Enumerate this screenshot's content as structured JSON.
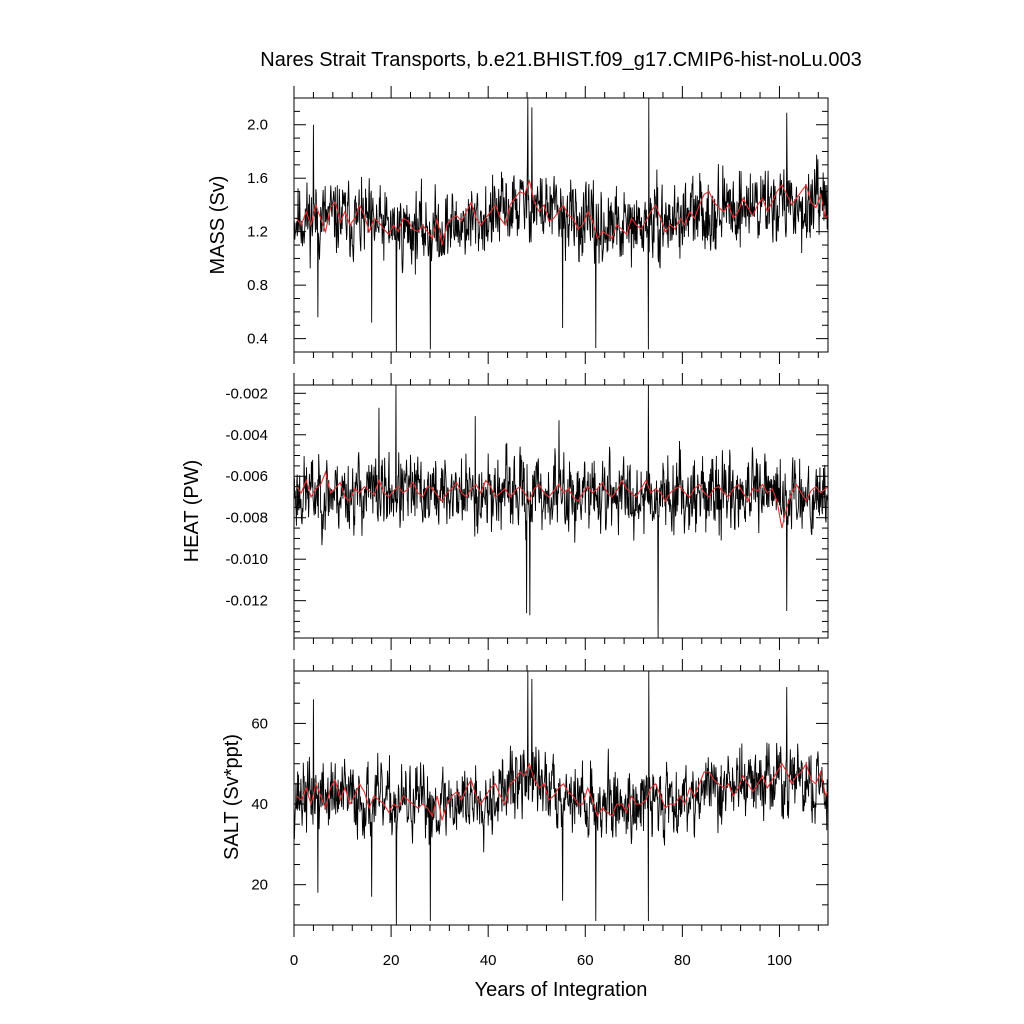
{
  "figure": {
    "title": "Nares Strait Transports, b.e21.BHIST.f09_g17.CMIP6-hist-noLu.003",
    "xlabel": "Years of Integration"
  },
  "colors": {
    "raw_line": "#000000",
    "smooth_line": "#e03030"
  },
  "chart_data": [
    {
      "type": "line",
      "ylabel": "MASS (Sv)",
      "xlim": [
        0,
        110
      ],
      "ylim": [
        0.3,
        2.2
      ],
      "yticks": [
        0.4,
        0.8,
        1.2,
        1.6,
        2.0
      ],
      "ytick_labels": [
        "0.4",
        "0.8",
        "1.2",
        "1.6",
        "2.0"
      ],
      "yminor_step": 0.1,
      "series": [
        {
          "kind": "monthly",
          "samples_per_year": 12,
          "mean_keys": [
            [
              0,
              1.3
            ],
            [
              10,
              1.3
            ],
            [
              20,
              1.22
            ],
            [
              30,
              1.22
            ],
            [
              40,
              1.3
            ],
            [
              48,
              1.42
            ],
            [
              55,
              1.33
            ],
            [
              62,
              1.22
            ],
            [
              70,
              1.22
            ],
            [
              80,
              1.3
            ],
            [
              90,
              1.38
            ],
            [
              100,
              1.42
            ],
            [
              110,
              1.35
            ]
          ],
          "spread": 0.17,
          "noise_seed": 11,
          "spikes": [
            [
              21.1,
              0.3
            ],
            [
              28.1,
              0.32
            ],
            [
              48.2,
              2.2
            ],
            [
              49.0,
              2.13
            ],
            [
              73.1,
              2.2
            ],
            [
              73.0,
              0.32
            ],
            [
              55.3,
              0.48
            ],
            [
              62.2,
              0.33
            ],
            [
              16.0,
              0.52
            ],
            [
              4.9,
              0.56
            ],
            [
              4.0,
              2.0
            ],
            [
              101.5,
              2.09
            ]
          ]
        },
        {
          "kind": "annual",
          "values": [
            1.3,
            1.25,
            1.35,
            1.25,
            1.4,
            1.3,
            1.2,
            1.38,
            1.42,
            1.27,
            1.35,
            1.25,
            1.3,
            1.4,
            1.32,
            1.2,
            1.3,
            1.27,
            1.22,
            1.18,
            1.25,
            1.2,
            1.3,
            1.28,
            1.22,
            1.2,
            1.25,
            1.2,
            1.15,
            1.3,
            1.1,
            1.25,
            1.3,
            1.32,
            1.28,
            1.35,
            1.42,
            1.3,
            1.25,
            1.3,
            1.35,
            1.4,
            1.3,
            1.25,
            1.4,
            1.45,
            1.5,
            1.48,
            1.58,
            1.42,
            1.35,
            1.4,
            1.28,
            1.3,
            1.35,
            1.4,
            1.32,
            1.3,
            1.22,
            1.25,
            1.35,
            1.28,
            1.15,
            1.2,
            1.18,
            1.15,
            1.25,
            1.22,
            1.18,
            1.3,
            1.25,
            1.22,
            1.28,
            1.35,
            1.4,
            1.3,
            1.2,
            1.25,
            1.22,
            1.3,
            1.25,
            1.35,
            1.3,
            1.4,
            1.48,
            1.5,
            1.42,
            1.38,
            1.35,
            1.4,
            1.3,
            1.35,
            1.45,
            1.38,
            1.32,
            1.4,
            1.45,
            1.35,
            1.42,
            1.5,
            1.55,
            1.48,
            1.4,
            1.45,
            1.5,
            1.55,
            1.42,
            1.38,
            1.48,
            1.3,
            1.35
          ]
        }
      ]
    },
    {
      "type": "line",
      "ylabel": "HEAT (PW)",
      "xlim": [
        0,
        110
      ],
      "ylim": [
        -0.0138,
        -0.0016
      ],
      "yticks": [
        -0.012,
        -0.01,
        -0.008,
        -0.006,
        -0.004,
        -0.002
      ],
      "ytick_labels": [
        "-0.012",
        "-0.010",
        "-0.008",
        "-0.006",
        "-0.004",
        "-0.002"
      ],
      "yminor_step": 0.0005,
      "series": [
        {
          "kind": "monthly",
          "samples_per_year": 12,
          "mean_keys": [
            [
              0,
              -0.0068
            ],
            [
              20,
              -0.0068
            ],
            [
              40,
              -0.0068
            ],
            [
              60,
              -0.0069
            ],
            [
              80,
              -0.0068
            ],
            [
              100,
              -0.0069
            ],
            [
              110,
              -0.0068
            ]
          ],
          "spread": 0.0011,
          "noise_seed": 23,
          "spikes": [
            [
              21.0,
              -0.0016
            ],
            [
              47.9,
              -0.0126
            ],
            [
              48.6,
              -0.0127
            ],
            [
              73.0,
              -0.0016
            ],
            [
              75.0,
              -0.0138
            ],
            [
              101.5,
              -0.0125
            ],
            [
              37.3,
              -0.0031
            ],
            [
              54.6,
              -0.0033
            ],
            [
              17.5,
              -0.0027
            ]
          ]
        },
        {
          "kind": "annual",
          "values": [
            -0.0065,
            -0.0068,
            -0.0062,
            -0.007,
            -0.0066,
            -0.0064,
            -0.0058,
            -0.0068,
            -0.0066,
            -0.0063,
            -0.007,
            -0.0072,
            -0.0066,
            -0.0068,
            -0.0065,
            -0.0067,
            -0.0069,
            -0.0062,
            -0.0068,
            -0.007,
            -0.0067,
            -0.0065,
            -0.0068,
            -0.0066,
            -0.0063,
            -0.0068,
            -0.007,
            -0.0065,
            -0.0066,
            -0.0069,
            -0.0072,
            -0.0068,
            -0.0066,
            -0.0063,
            -0.0068,
            -0.007,
            -0.0066,
            -0.0064,
            -0.0068,
            -0.0062,
            -0.0065,
            -0.007,
            -0.0068,
            -0.0066,
            -0.007,
            -0.0067,
            -0.0065,
            -0.0068,
            -0.0072,
            -0.0066,
            -0.0064,
            -0.0068,
            -0.007,
            -0.0067,
            -0.0064,
            -0.0068,
            -0.0066,
            -0.007,
            -0.0072,
            -0.0068,
            -0.0065,
            -0.0068,
            -0.0066,
            -0.0063,
            -0.0068,
            -0.007,
            -0.0067,
            -0.0062,
            -0.0066,
            -0.0068,
            -0.007,
            -0.0066,
            -0.0062,
            -0.0068,
            -0.0066,
            -0.0068,
            -0.0072,
            -0.0068,
            -0.0066,
            -0.0065,
            -0.0068,
            -0.007,
            -0.0066,
            -0.0064,
            -0.0068,
            -0.007,
            -0.0066,
            -0.0065,
            -0.0068,
            -0.007,
            -0.0066,
            -0.0064,
            -0.0068,
            -0.0072,
            -0.0066,
            -0.0067,
            -0.0064,
            -0.0068,
            -0.0066,
            -0.0072,
            -0.0085,
            -0.0075,
            -0.0068,
            -0.0064,
            -0.0068,
            -0.0072,
            -0.0067,
            -0.0065,
            -0.0068,
            -0.0066,
            -0.0064
          ]
        }
      ]
    },
    {
      "type": "line",
      "ylabel": "SALT (Sv*ppt)",
      "xlim": [
        0,
        110
      ],
      "ylim": [
        10,
        73
      ],
      "yticks": [
        20,
        40,
        60
      ],
      "ytick_labels": [
        "20",
        "40",
        "60"
      ],
      "yminor_step": 5,
      "series": [
        {
          "kind": "monthly",
          "samples_per_year": 12,
          "mean_keys": [
            [
              0,
              42
            ],
            [
              10,
              42
            ],
            [
              20,
              40
            ],
            [
              30,
              40
            ],
            [
              40,
              42
            ],
            [
              48,
              46
            ],
            [
              55,
              43
            ],
            [
              62,
              40
            ],
            [
              70,
              40
            ],
            [
              80,
              42
            ],
            [
              90,
              45
            ],
            [
              100,
              46
            ],
            [
              110,
              44
            ]
          ],
          "spread": 5.5,
          "noise_seed": 37,
          "spikes": [
            [
              21.1,
              10
            ],
            [
              28.1,
              11
            ],
            [
              48.2,
              73
            ],
            [
              49.0,
              71
            ],
            [
              73.1,
              73
            ],
            [
              73.0,
              11
            ],
            [
              55.3,
              16
            ],
            [
              62.2,
              11
            ],
            [
              16.0,
              17
            ],
            [
              4.9,
              18
            ],
            [
              4.0,
              66
            ],
            [
              101.5,
              69
            ]
          ]
        },
        {
          "kind": "annual",
          "values": [
            42,
            41,
            44,
            40,
            45,
            42,
            39,
            44,
            46,
            41,
            44,
            40,
            42,
            45,
            43,
            39,
            42,
            41,
            40,
            38,
            40,
            39,
            42,
            41,
            40,
            39,
            40,
            39,
            37,
            42,
            36,
            40,
            42,
            43,
            41,
            44,
            46,
            42,
            40,
            42,
            44,
            45,
            42,
            40,
            45,
            46,
            48,
            47,
            50,
            46,
            44,
            45,
            41,
            42,
            44,
            45,
            43,
            42,
            40,
            40,
            44,
            41,
            37,
            39,
            38,
            37,
            40,
            40,
            38,
            42,
            40,
            40,
            41,
            44,
            45,
            42,
            39,
            40,
            40,
            42,
            40,
            44,
            42,
            45,
            48,
            48,
            46,
            45,
            44,
            45,
            42,
            44,
            47,
            45,
            43,
            45,
            47,
            44,
            46,
            48,
            50,
            48,
            45,
            47,
            48,
            50,
            46,
            45,
            48,
            42,
            44
          ]
        }
      ]
    }
  ],
  "xaxis": {
    "ticks": [
      0,
      20,
      40,
      60,
      80,
      100
    ],
    "tick_labels": [
      "0",
      "20",
      "40",
      "60",
      "80",
      "100"
    ],
    "minor_step": 4
  }
}
